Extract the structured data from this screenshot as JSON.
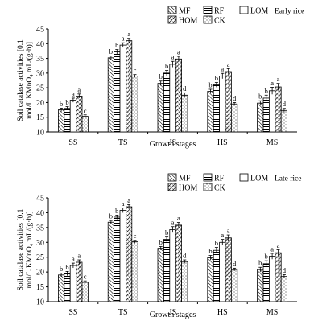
{
  "chart_data": [
    {
      "type": "bar",
      "title": "Early rice",
      "xlabel": "Growth stages",
      "ylabel": "Soil catalase activities [0.1 mol/L KMnO₄ mL/(g·h)]",
      "ylim": [
        10,
        45
      ],
      "yticks": [
        10,
        15,
        20,
        25,
        30,
        35,
        40,
        45
      ],
      "categories": [
        "SS",
        "TS",
        "JS",
        "HS",
        "MS"
      ],
      "series": [
        {
          "name": "MF",
          "values": [
            17.5,
            35.2,
            26.5,
            23.8,
            19.8
          ],
          "errors": [
            0.6,
            0.6,
            0.8,
            0.7,
            0.8
          ],
          "letters": [
            "b",
            "b",
            "b",
            "b",
            "b"
          ]
        },
        {
          "name": "RF",
          "values": [
            18.0,
            37.2,
            30.0,
            26.0,
            21.5
          ],
          "errors": [
            0.6,
            0.8,
            0.9,
            0.8,
            1.0
          ],
          "letters": [
            "b",
            "b",
            "b",
            "b",
            "b"
          ]
        },
        {
          "name": "LOM",
          "values": [
            20.8,
            39.5,
            33.0,
            29.0,
            24.0
          ],
          "errors": [
            0.7,
            0.8,
            1.0,
            0.9,
            1.2
          ],
          "letters": [
            "a",
            "a",
            "a",
            "a",
            "a"
          ]
        },
        {
          "name": "HOM",
          "values": [
            22.2,
            41.0,
            34.8,
            30.5,
            25.3
          ],
          "errors": [
            0.7,
            0.8,
            0.9,
            1.0,
            1.2
          ],
          "letters": [
            "a",
            "a",
            "a",
            "a",
            "a"
          ]
        },
        {
          "name": "CK",
          "values": [
            15.3,
            29.0,
            22.5,
            19.5,
            17.3
          ],
          "errors": [
            0.5,
            0.5,
            0.8,
            0.5,
            0.7
          ],
          "letters": [
            "c",
            "c",
            "d",
            "d",
            "d"
          ]
        }
      ],
      "legend_position": "top-right"
    },
    {
      "type": "bar",
      "title": "Late rice",
      "xlabel": "Growth stages",
      "ylabel": "Soil catalase activities [0.1 mol/L KMnO₄ mL/(g·h)]",
      "ylim": [
        10,
        45
      ],
      "yticks": [
        10,
        15,
        20,
        25,
        30,
        35,
        40,
        45
      ],
      "categories": [
        "SS",
        "TS",
        "JS",
        "HS",
        "MS"
      ],
      "series": [
        {
          "name": "MF",
          "values": [
            19.0,
            36.8,
            28.0,
            24.8,
            20.8
          ],
          "errors": [
            0.6,
            0.6,
            0.6,
            0.8,
            0.8
          ],
          "letters": [
            "b",
            "b",
            "b",
            "b",
            "b"
          ]
        },
        {
          "name": "RF",
          "values": [
            19.5,
            38.5,
            31.0,
            27.3,
            22.8
          ],
          "errors": [
            0.7,
            0.7,
            0.8,
            1.0,
            1.0
          ],
          "letters": [
            "b",
            "b",
            "b",
            "b",
            "b"
          ]
        },
        {
          "name": "LOM",
          "values": [
            22.2,
            40.8,
            34.3,
            30.0,
            25.3
          ],
          "errors": [
            0.8,
            0.8,
            1.0,
            1.0,
            1.0
          ],
          "letters": [
            "a",
            "a",
            "a",
            "a",
            "a"
          ]
        },
        {
          "name": "HOM",
          "values": [
            23.3,
            42.0,
            35.8,
            31.5,
            26.5
          ],
          "errors": [
            0.8,
            0.7,
            0.9,
            1.0,
            1.0
          ],
          "letters": [
            "a",
            "a",
            "a",
            "a",
            "a"
          ]
        },
        {
          "name": "CK",
          "values": [
            16.5,
            30.2,
            23.5,
            20.8,
            18.5
          ],
          "errors": [
            0.5,
            0.5,
            0.6,
            0.5,
            0.6
          ],
          "letters": [
            "c",
            "c",
            "d",
            "d",
            "d"
          ]
        }
      ],
      "legend_position": "top-right"
    }
  ],
  "ylabel_lines": [
    "Soil catalase activities [0.1",
    "mol/L KMnO₄ mL/(g·h)]"
  ]
}
